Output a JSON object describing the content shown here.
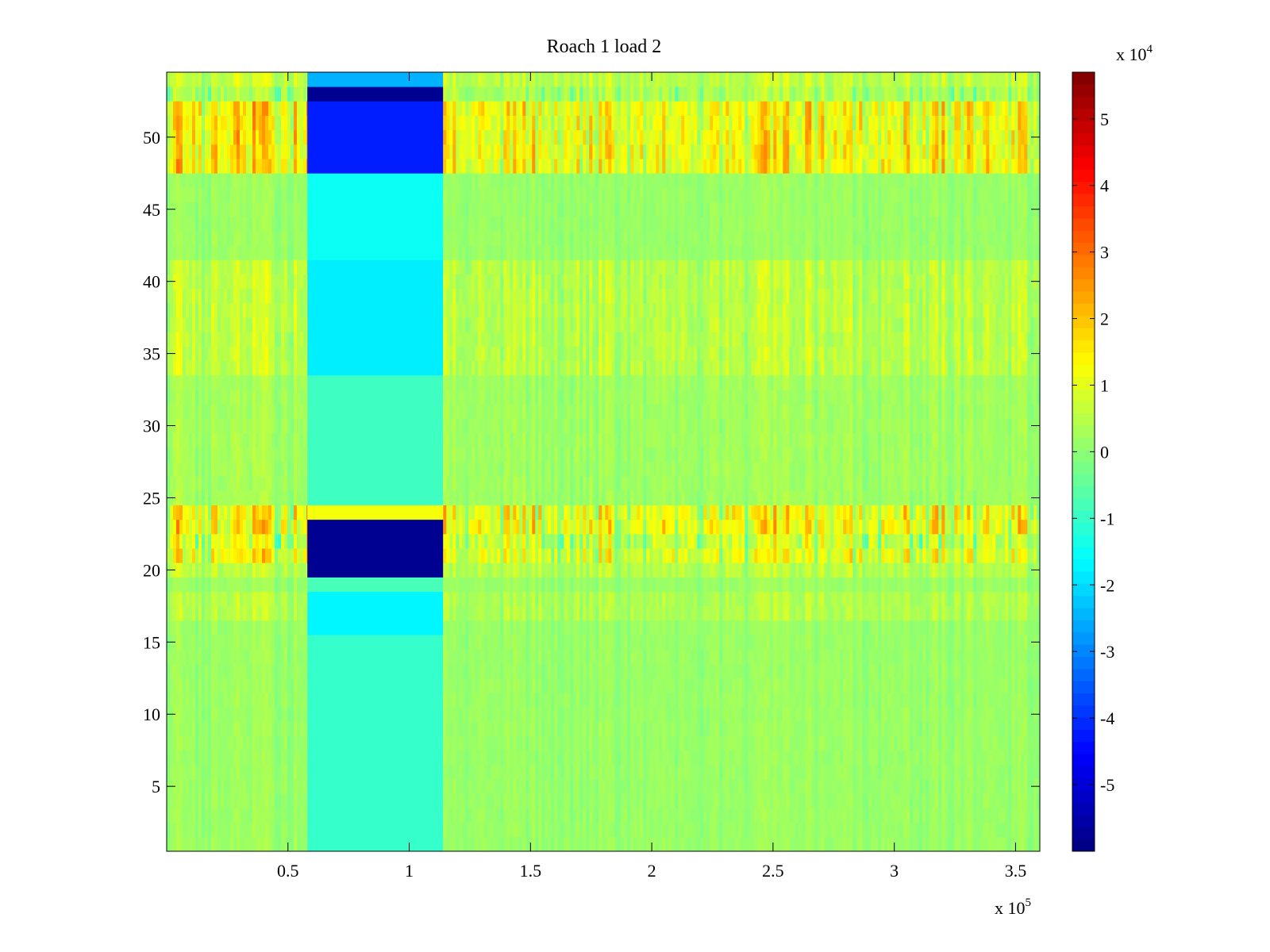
{
  "chart_data": {
    "type": "heatmap",
    "title": "Roach 1 load 2",
    "xlabel": "",
    "ylabel": "",
    "colormap": "jet",
    "x_multiplier_label": {
      "base": "x 10",
      "exponent": "5"
    },
    "colorbar_multiplier_label": {
      "base": "x 10",
      "exponent": "4"
    },
    "xlim": [
      0,
      360000
    ],
    "ylim": [
      0.5,
      54.5
    ],
    "clim": [
      -60000,
      57000
    ],
    "x_ticks": [
      {
        "value": 50000,
        "label": "0.5"
      },
      {
        "value": 100000,
        "label": "1"
      },
      {
        "value": 150000,
        "label": "1.5"
      },
      {
        "value": 200000,
        "label": "2"
      },
      {
        "value": 250000,
        "label": "2.5"
      },
      {
        "value": 300000,
        "label": "3"
      },
      {
        "value": 350000,
        "label": "3.5"
      }
    ],
    "y_ticks": [
      {
        "value": 5,
        "label": "5"
      },
      {
        "value": 10,
        "label": "10"
      },
      {
        "value": 15,
        "label": "15"
      },
      {
        "value": 20,
        "label": "20"
      },
      {
        "value": 25,
        "label": "25"
      },
      {
        "value": 30,
        "label": "30"
      },
      {
        "value": 35,
        "label": "35"
      },
      {
        "value": 40,
        "label": "40"
      },
      {
        "value": 45,
        "label": "45"
      },
      {
        "value": 50,
        "label": "50"
      }
    ],
    "colorbar_ticks": [
      {
        "value": -50000,
        "label": "-5"
      },
      {
        "value": -40000,
        "label": "-4"
      },
      {
        "value": -30000,
        "label": "-3"
      },
      {
        "value": -20000,
        "label": "-2"
      },
      {
        "value": -10000,
        "label": "-1"
      },
      {
        "value": 0,
        "label": "0"
      },
      {
        "value": 10000,
        "label": "1"
      },
      {
        "value": 20000,
        "label": "2"
      },
      {
        "value": 30000,
        "label": "3"
      },
      {
        "value": 40000,
        "label": "4"
      },
      {
        "value": 50000,
        "label": "5"
      }
    ],
    "channel_rows": 54,
    "segments": [
      {
        "x_start": 0,
        "x_end": 58000,
        "kind": "active",
        "intensity": 1.0
      },
      {
        "x_start": 58000,
        "x_end": 114000,
        "kind": "saturated"
      },
      {
        "x_start": 114000,
        "x_end": 360000,
        "kind": "active",
        "intensity": 0.85
      }
    ],
    "row_profiles": {
      "active": [
        {
          "rows": [
            1,
            16
          ],
          "mean": 1000,
          "variation": 4000
        },
        {
          "rows": [
            17,
            18
          ],
          "mean": 5000,
          "variation": 6000
        },
        {
          "rows": [
            19,
            19
          ],
          "mean": 1000,
          "variation": 4000
        },
        {
          "rows": [
            20,
            20
          ],
          "mean": 6000,
          "variation": 7000
        },
        {
          "rows": [
            21,
            21
          ],
          "mean": 10000,
          "variation": 18000
        },
        {
          "rows": [
            22,
            22
          ],
          "mean": 2000,
          "variation": 22000
        },
        {
          "rows": [
            23,
            24
          ],
          "mean": 12000,
          "variation": 20000
        },
        {
          "rows": [
            25,
            33
          ],
          "mean": 2000,
          "variation": 5000
        },
        {
          "rows": [
            34,
            41
          ],
          "mean": 6000,
          "variation": 8000
        },
        {
          "rows": [
            42,
            47
          ],
          "mean": 1000,
          "variation": 4000
        },
        {
          "rows": [
            48,
            52
          ],
          "mean": 16000,
          "variation": 16000
        },
        {
          "rows": [
            53,
            53
          ],
          "mean": 0,
          "variation": 12000
        },
        {
          "rows": [
            54,
            54
          ],
          "mean": 7000,
          "variation": 8000
        }
      ],
      "saturated": [
        {
          "rows": [
            1,
            15
          ],
          "value": -10000
        },
        {
          "rows": [
            16,
            18
          ],
          "value": -17000
        },
        {
          "rows": [
            19,
            19
          ],
          "value": -8000
        },
        {
          "rows": [
            20,
            23
          ],
          "value": -58000
        },
        {
          "rows": [
            24,
            24
          ],
          "value": 12000
        },
        {
          "rows": [
            25,
            33
          ],
          "value": -9000
        },
        {
          "rows": [
            34,
            41
          ],
          "value": -18000
        },
        {
          "rows": [
            42,
            47
          ],
          "value": -15000
        },
        {
          "rows": [
            48,
            52
          ],
          "value": -42000
        },
        {
          "rows": [
            53,
            53
          ],
          "value": -58000
        },
        {
          "rows": [
            54,
            54
          ],
          "value": -25000
        }
      ]
    }
  }
}
